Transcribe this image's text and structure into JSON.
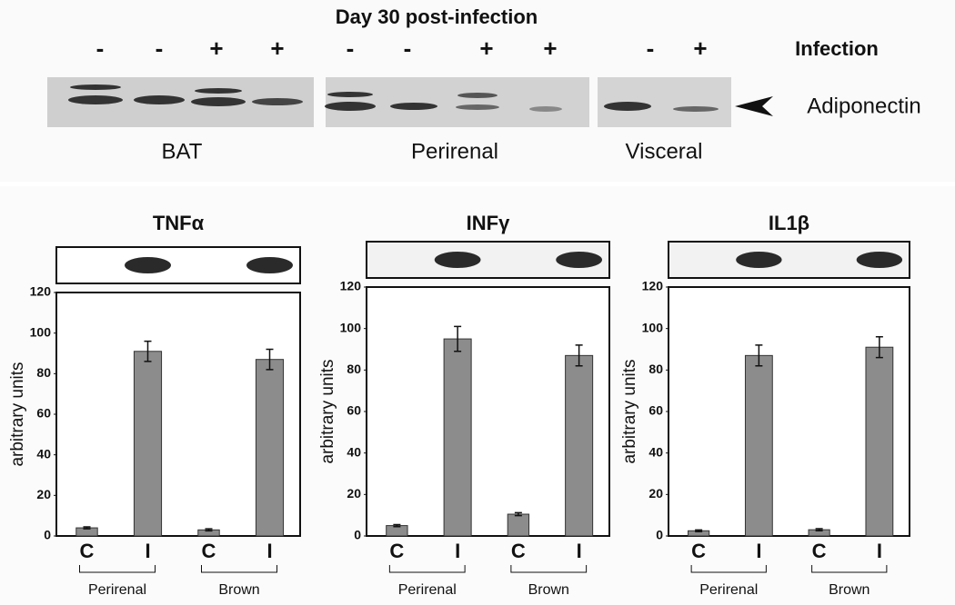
{
  "blot": {
    "title": "Day 30 post-infection",
    "lanes": [
      "-",
      "-",
      "+",
      "+",
      "-",
      "-",
      "+",
      "+",
      "-",
      "+"
    ],
    "row_label": "Infection",
    "protein": "Adiponectin",
    "tissues": [
      "BAT",
      "Perirenal",
      "Visceral"
    ]
  },
  "chart_data": [
    {
      "type": "bar",
      "title": "TNFα",
      "y_label": "arbitrary units",
      "categories": [
        "C",
        "I",
        "C",
        "I"
      ],
      "groups": [
        "Perirenal",
        "Brown"
      ],
      "values": [
        4,
        91,
        3,
        87
      ],
      "errors": [
        0.5,
        5,
        0.5,
        5
      ],
      "color": "#8c8c8c",
      "ylim": [
        0,
        120
      ],
      "yticks": [
        0,
        20,
        40,
        60,
        80,
        100,
        120
      ]
    },
    {
      "type": "bar",
      "title": "INFγ",
      "y_label": "arbitrary units",
      "categories": [
        "C",
        "I",
        "C",
        "I"
      ],
      "groups": [
        "Perirenal",
        "Brown"
      ],
      "values": [
        5,
        95,
        10.5,
        87
      ],
      "errors": [
        0.5,
        6,
        0.7,
        5
      ],
      "color": "#8c8c8c",
      "ylim": [
        0,
        120
      ],
      "yticks": [
        0,
        20,
        40,
        60,
        80,
        100,
        120
      ]
    },
    {
      "type": "bar",
      "title": "IL1β",
      "y_label": "arbitrary units",
      "categories": [
        "C",
        "I",
        "C",
        "I"
      ],
      "groups": [
        "Perirenal",
        "Brown"
      ],
      "values": [
        2.5,
        87,
        3,
        91
      ],
      "errors": [
        0.4,
        5,
        0.5,
        5
      ],
      "color": "#8c8c8c",
      "ylim": [
        0,
        120
      ],
      "yticks": [
        0,
        20,
        40,
        60,
        80,
        100,
        120
      ]
    }
  ]
}
